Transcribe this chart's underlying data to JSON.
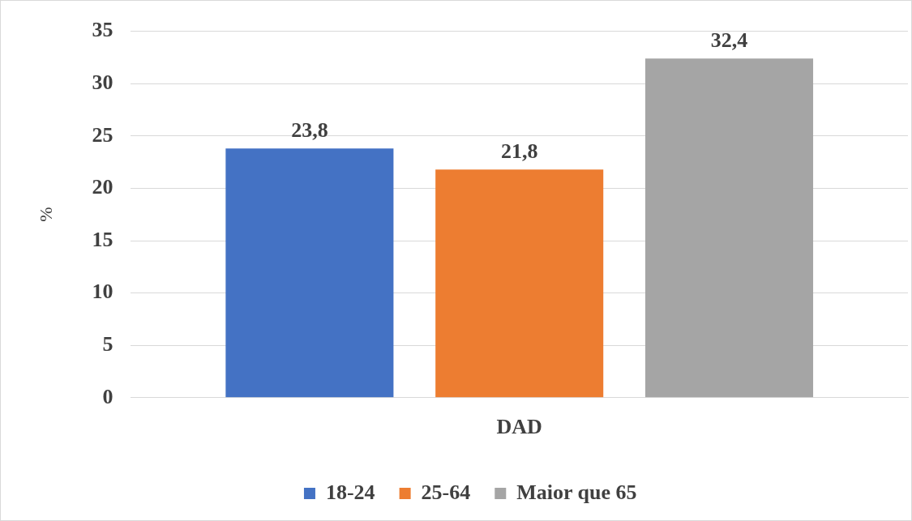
{
  "chart_data": {
    "type": "bar",
    "categories": [
      "DAD"
    ],
    "ylabel": "%",
    "series": [
      {
        "name": "18-24",
        "color": "#4472c4",
        "values": [
          23.8
        ],
        "value_labels": [
          "23,8"
        ]
      },
      {
        "name": "25-64",
        "color": "#ed7d31",
        "values": [
          21.8
        ],
        "value_labels": [
          "21,8"
        ]
      },
      {
        "name": "Maior que 65",
        "color": "#a5a5a5",
        "values": [
          32.4
        ],
        "value_labels": [
          "32,4"
        ]
      }
    ],
    "ylim": [
      0,
      35
    ],
    "yticks": [
      0,
      5,
      10,
      15,
      20,
      25,
      30,
      35
    ],
    "grid": "y",
    "legend": "bottom"
  }
}
